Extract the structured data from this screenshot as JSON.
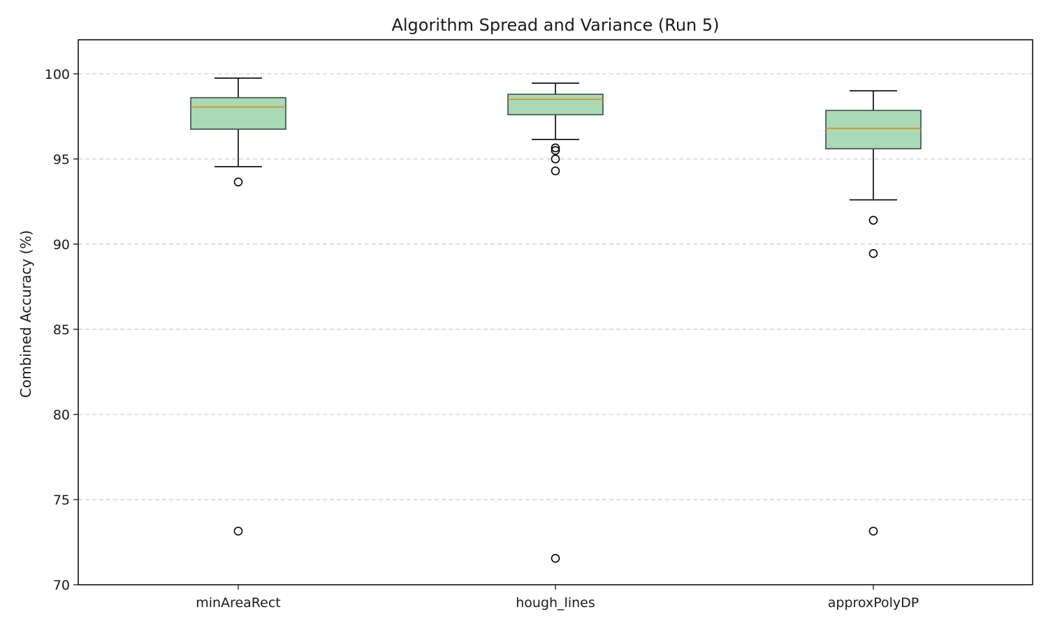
{
  "chart_data": {
    "type": "box",
    "title": "Algorithm Spread and Variance (Run 5)",
    "xlabel": "",
    "ylabel": "Combined Accuracy (%)",
    "ylim": [
      70,
      102
    ],
    "yticks": [
      70,
      75,
      80,
      85,
      90,
      95,
      100
    ],
    "grid": "y-dashed",
    "categories": [
      "minAreaRect",
      "hough_lines",
      "approxPolyDP"
    ],
    "boxes": [
      {
        "category": "minAreaRect",
        "whisker_low": 94.55,
        "q1": 96.75,
        "median": 98.05,
        "q3": 98.6,
        "whisker_high": 99.75,
        "outliers": [
          93.65,
          73.15
        ]
      },
      {
        "category": "hough_lines",
        "whisker_low": 96.15,
        "q1": 97.6,
        "median": 98.5,
        "q3": 98.8,
        "whisker_high": 99.45,
        "outliers": [
          95.65,
          95.5,
          95.0,
          94.3,
          71.55
        ]
      },
      {
        "category": "approxPolyDP",
        "whisker_low": 92.6,
        "q1": 95.6,
        "median": 96.8,
        "q3": 97.85,
        "whisker_high": 99.0,
        "outliers": [
          91.4,
          89.45,
          73.15
        ]
      }
    ],
    "colors": {
      "box_fill": "#a9d9b6",
      "box_edge": "#3b4f45",
      "median": "#e08c12",
      "whisker": "#000000",
      "grid": "#cccccc",
      "axis": "#000000"
    }
  }
}
